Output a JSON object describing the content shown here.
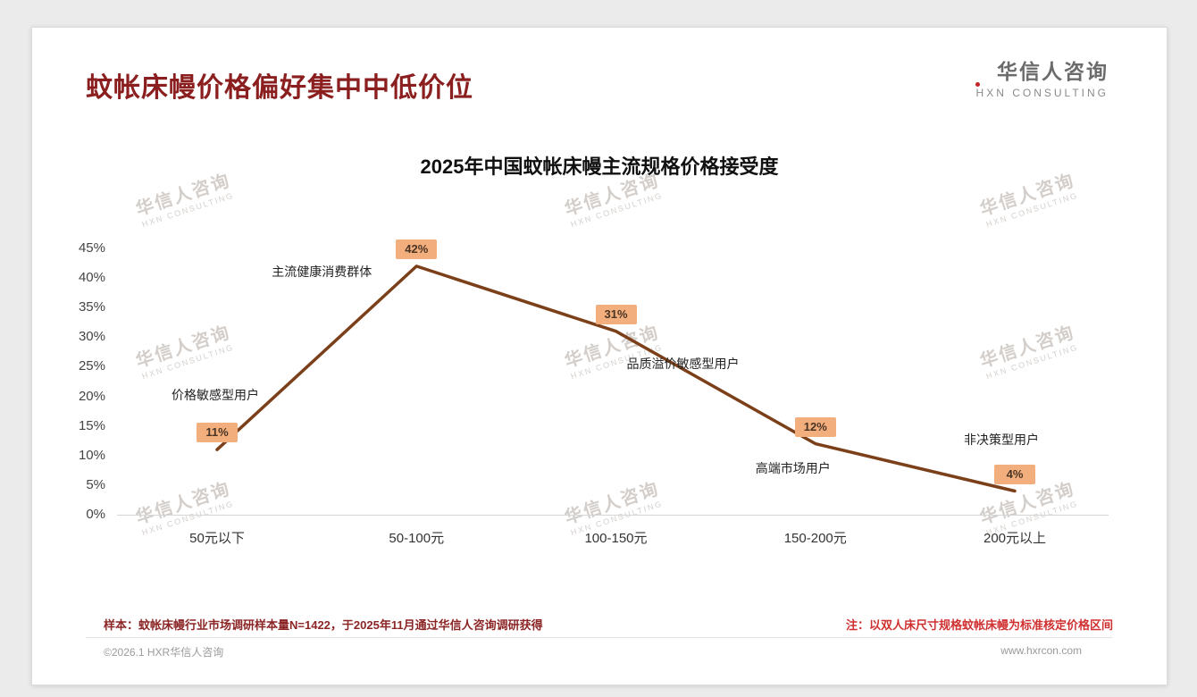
{
  "page": {
    "title": "蚊帐床幔价格偏好集中中低价位",
    "logo_cn": "华信人咨询",
    "logo_en": "HXN CONSULTING",
    "note_left": "样本：蚊帐床幔行业市场调研样本量N=1422，于2025年11月通过华信人咨询调研获得",
    "note_right": "注：以双人床尺寸规格蚊帐床幔为标准核定价格区间",
    "footer_left": "©2026.1 HXR华信人咨询",
    "footer_right": "www.hxrcon.com",
    "watermark_cn": "华信人咨询",
    "watermark_en": "HXN CONSULTING"
  },
  "chart_data": {
    "type": "line",
    "title": "2025年中国蚊帐床幔主流规格价格接受度",
    "categories": [
      "50元以下",
      "50-100元",
      "100-150元",
      "150-200元",
      "200元以上"
    ],
    "values": [
      11,
      42,
      31,
      12,
      4
    ],
    "data_labels": [
      "11%",
      "42%",
      "31%",
      "12%",
      "4%"
    ],
    "annotations": [
      "价格敏感型用户",
      "主流健康消费群体",
      "品质溢价敏感型用户",
      "高端市场用户",
      "非决策型用户"
    ],
    "ylim": [
      0,
      45
    ],
    "tick_step": 5,
    "grid": false,
    "legend": false,
    "line_color": "#7B4019",
    "label_bg": "#F2AE7D"
  }
}
